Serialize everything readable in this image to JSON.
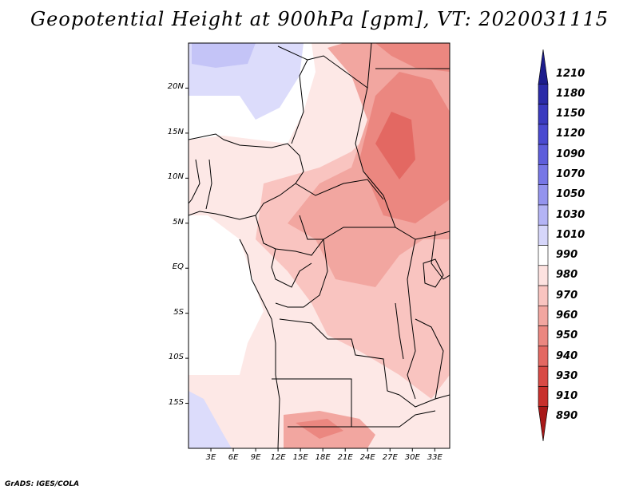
{
  "title": "Geopotential Height at 900hPa [gpm], VT: 2020031115",
  "credit": "GrADS: IGES/COLA",
  "map": {
    "variable": "Geopotential Height",
    "level": "900hPa",
    "units": "gpm",
    "valid_time": "2020031115",
    "lon_range": [
      0,
      35
    ],
    "lat_range": [
      -20,
      25
    ],
    "lat_ticks": [
      {
        "value": 20,
        "label": "20N"
      },
      {
        "value": 15,
        "label": "15N"
      },
      {
        "value": 10,
        "label": "10N"
      },
      {
        "value": 5,
        "label": "5N"
      },
      {
        "value": 0,
        "label": "EQ"
      },
      {
        "value": -5,
        "label": "5S"
      },
      {
        "value": -10,
        "label": "10S"
      },
      {
        "value": -15,
        "label": "15S"
      }
    ],
    "lon_ticks": [
      {
        "value": 3,
        "label": "3E"
      },
      {
        "value": 6,
        "label": "6E"
      },
      {
        "value": 9,
        "label": "9E"
      },
      {
        "value": 12,
        "label": "12E"
      },
      {
        "value": 15,
        "label": "15E"
      },
      {
        "value": 18,
        "label": "18E"
      },
      {
        "value": 21,
        "label": "21E"
      },
      {
        "value": 24,
        "label": "24E"
      },
      {
        "value": 27,
        "label": "27E"
      },
      {
        "value": 30,
        "label": "30E"
      },
      {
        "value": 33,
        "label": "33E"
      }
    ]
  },
  "colorbar": {
    "levels": [
      "1210",
      "1180",
      "1150",
      "1120",
      "1090",
      "1070",
      "1050",
      "1030",
      "1010",
      "990",
      "980",
      "970",
      "960",
      "950",
      "940",
      "930",
      "910",
      "890"
    ],
    "colors": [
      "#1c1c8c",
      "#2b2ba8",
      "#3a3abf",
      "#4a4ad0",
      "#5e5edb",
      "#7777e6",
      "#9494ee",
      "#b4b4f5",
      "#d6d6fa",
      "#ffffff",
      "#fde2e0",
      "#f9c4c0",
      "#f2a6a0",
      "#eb8780",
      "#e36862",
      "#d84a45",
      "#c8302c",
      "#a81818"
    ]
  }
}
